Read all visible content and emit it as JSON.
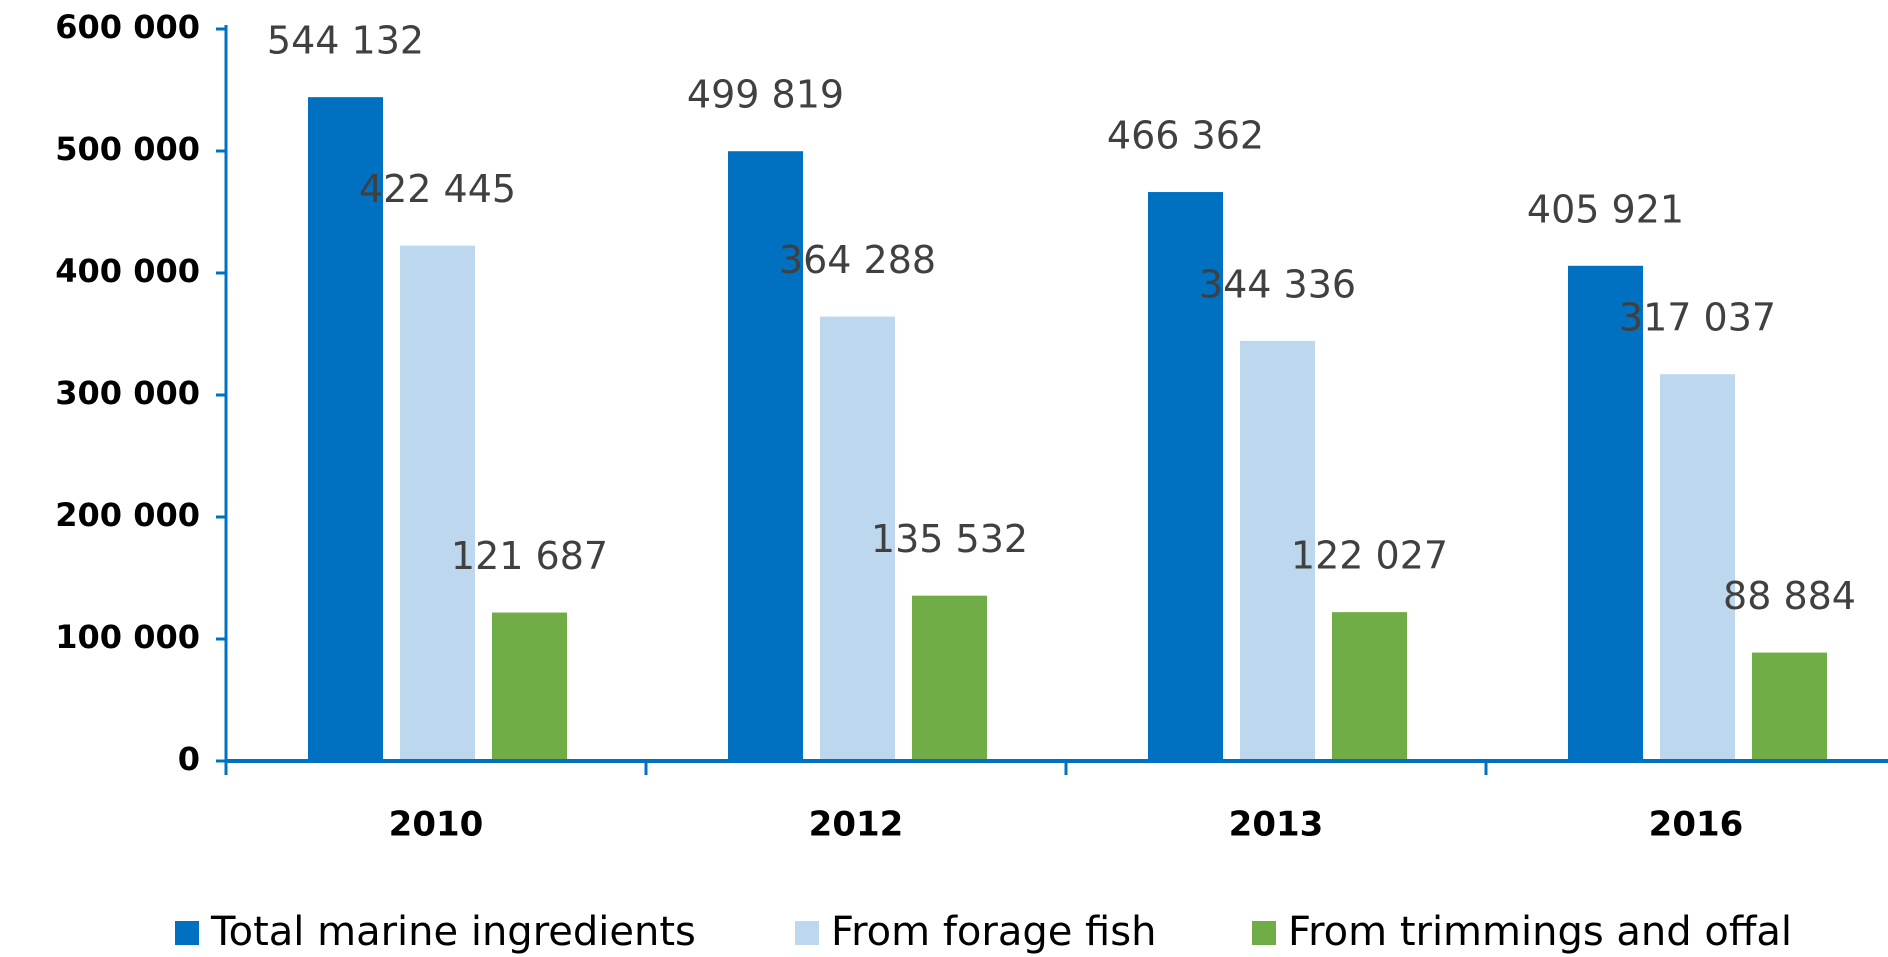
{
  "chart_data": {
    "type": "bar",
    "categories": [
      "2010",
      "2012",
      "2013",
      "2016"
    ],
    "series": [
      {
        "name": "Total marine ingredients",
        "color": "#0070c0",
        "values": [
          544132,
          499819,
          466362,
          405921
        ],
        "value_labels": [
          "544 132",
          "499 819",
          "466 362",
          "405 921"
        ]
      },
      {
        "name": "From forage fish",
        "color": "#bdd7ee",
        "values": [
          422445,
          364288,
          344336,
          317037
        ],
        "value_labels": [
          "422 445",
          "364 288",
          "344 336",
          "317 037"
        ]
      },
      {
        "name": "From trimmings and offal",
        "color": "#70ad47",
        "values": [
          121687,
          135532,
          122027,
          88884
        ],
        "value_labels": [
          "121 687",
          "135 532",
          "122 027",
          "88 884"
        ]
      }
    ],
    "ylim": [
      0,
      600000
    ],
    "yticks": [
      {
        "value": 0,
        "label": "0"
      },
      {
        "value": 100000,
        "label": "100 000"
      },
      {
        "value": 200000,
        "label": "200 000"
      },
      {
        "value": 300000,
        "label": "300 000"
      },
      {
        "value": 400000,
        "label": "400 000"
      },
      {
        "value": 500000,
        "label": "500 000"
      },
      {
        "value": 600000,
        "label": "600 000"
      }
    ],
    "legend": "bottom"
  }
}
